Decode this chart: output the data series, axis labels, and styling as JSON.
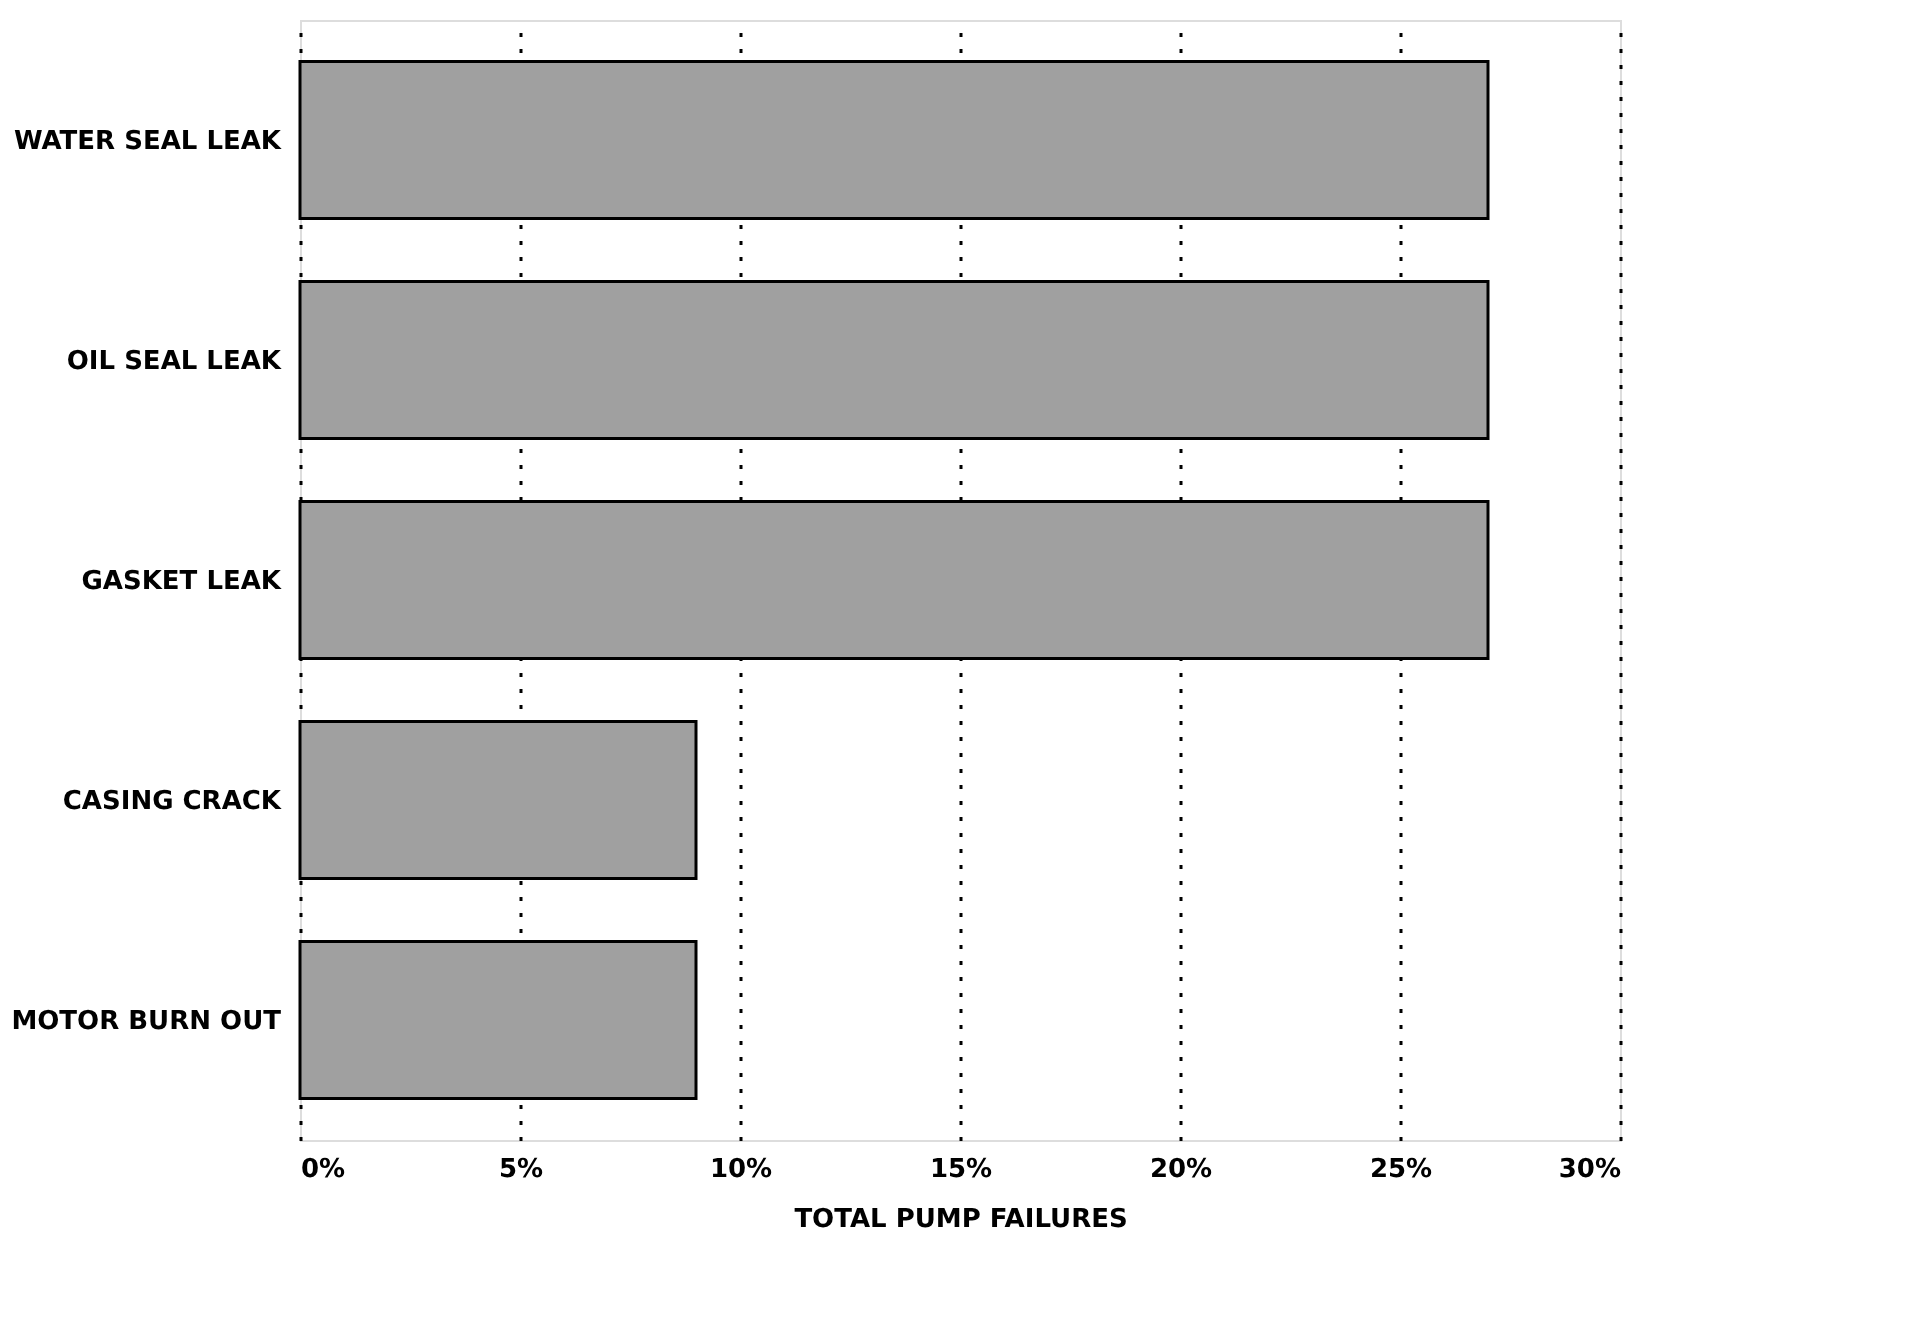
{
  "chart_data": {
    "type": "bar",
    "orientation": "horizontal",
    "xlabel": "TOTAL PUMP FAILURES",
    "categories": [
      "WATER SEAL LEAK",
      "OIL SEAL LEAK",
      "GASKET LEAK",
      "CASING CRACK",
      "MOTOR BURN OUT"
    ],
    "values": [
      27,
      27,
      27,
      9,
      9
    ],
    "color": "#a0a0a0",
    "xlim": [
      0,
      30
    ],
    "xticks": [
      {
        "value": 0,
        "label": "0%"
      },
      {
        "value": 5,
        "label": "5%"
      },
      {
        "value": 10,
        "label": "10%"
      },
      {
        "value": 15,
        "label": "15%"
      },
      {
        "value": 20,
        "label": "20%"
      },
      {
        "value": 25,
        "label": "25%"
      },
      {
        "value": 30,
        "label": "30%"
      }
    ],
    "grid": "x",
    "line_style": "dotted"
  }
}
